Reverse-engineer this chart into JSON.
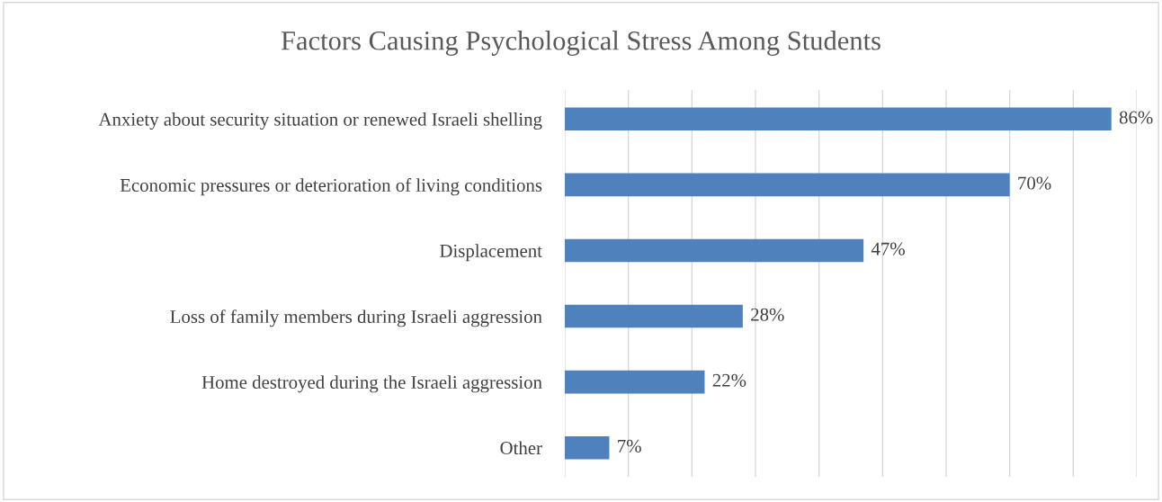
{
  "chart_data": {
    "type": "bar",
    "orientation": "horizontal",
    "title": "Factors Causing Psychological Stress Among Students",
    "categories": [
      "Anxiety about security situation or renewed Israeli shelling",
      "Economic pressures or deterioration of living conditions",
      "Displacement",
      "Loss of family members during Israeli aggression",
      "Home destroyed during the Israeli aggression",
      "Other"
    ],
    "values": [
      86,
      70,
      47,
      28,
      22,
      7
    ],
    "value_labels": [
      "86%",
      "70%",
      "47%",
      "28%",
      "22%",
      "7%"
    ],
    "color": "#4f81bd",
    "xlim": [
      0,
      90
    ],
    "xticks": [
      {
        "value": 0,
        "label": null
      },
      {
        "value": 10,
        "label": null
      },
      {
        "value": 20,
        "label": null
      },
      {
        "value": 30,
        "label": null
      },
      {
        "value": 40,
        "label": null
      },
      {
        "value": 50,
        "label": null
      },
      {
        "value": 60,
        "label": null
      },
      {
        "value": 70,
        "label": null
      },
      {
        "value": 80,
        "label": null
      },
      {
        "value": 90,
        "label": null
      }
    ],
    "tick_labels": "y",
    "grid": "x",
    "legend": false
  }
}
